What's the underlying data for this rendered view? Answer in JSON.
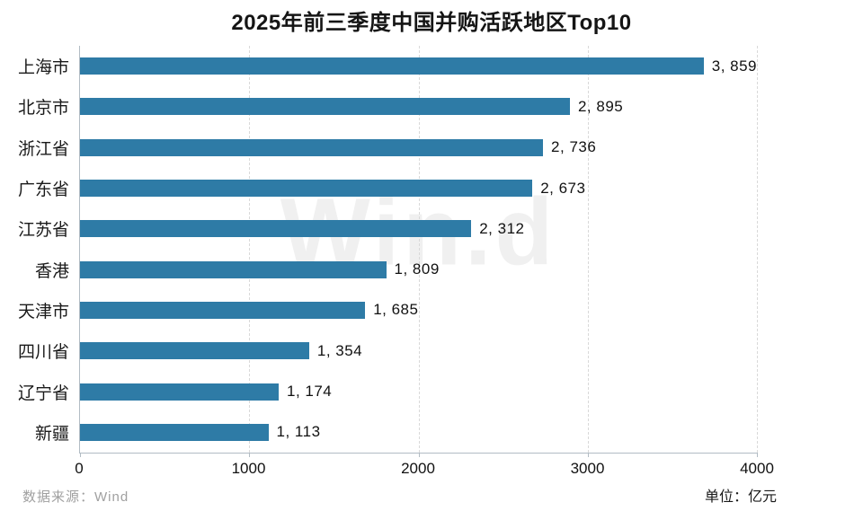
{
  "title": "2025年前三季度中国并购活跃地区Top10",
  "watermark": "Win.d",
  "footer": {
    "source": "数据来源：Wind",
    "unit": "单位：亿元"
  },
  "colors": {
    "bar": "#2e7ba6",
    "grid": "#d9d9d9",
    "axis": "#b2bcc4",
    "title_text": "#151515",
    "source_text": "#a0a0a0"
  },
  "chart_data": {
    "type": "bar",
    "orientation": "horizontal",
    "title": "2025年前三季度中国并购活跃地区Top10",
    "categories": [
      "上海市",
      "北京市",
      "浙江省",
      "广东省",
      "江苏省",
      "香港",
      "天津市",
      "四川省",
      "辽宁省",
      "新疆"
    ],
    "values": [
      3859,
      2895,
      2736,
      2673,
      2312,
      1809,
      1685,
      1354,
      1174,
      1113
    ],
    "value_labels": [
      "3, 859",
      "2, 895",
      "2, 736",
      "2, 673",
      "2, 312",
      "1, 809",
      "1, 685",
      "1, 354",
      "1, 174",
      "1, 113"
    ],
    "xlabel": "",
    "ylabel": "",
    "xlim": [
      0,
      4000
    ],
    "xticks": [
      0,
      1000,
      2000,
      3000,
      4000
    ],
    "grid": "vertical-dashed",
    "legend": "none",
    "unit": "亿元",
    "source": "Wind"
  }
}
